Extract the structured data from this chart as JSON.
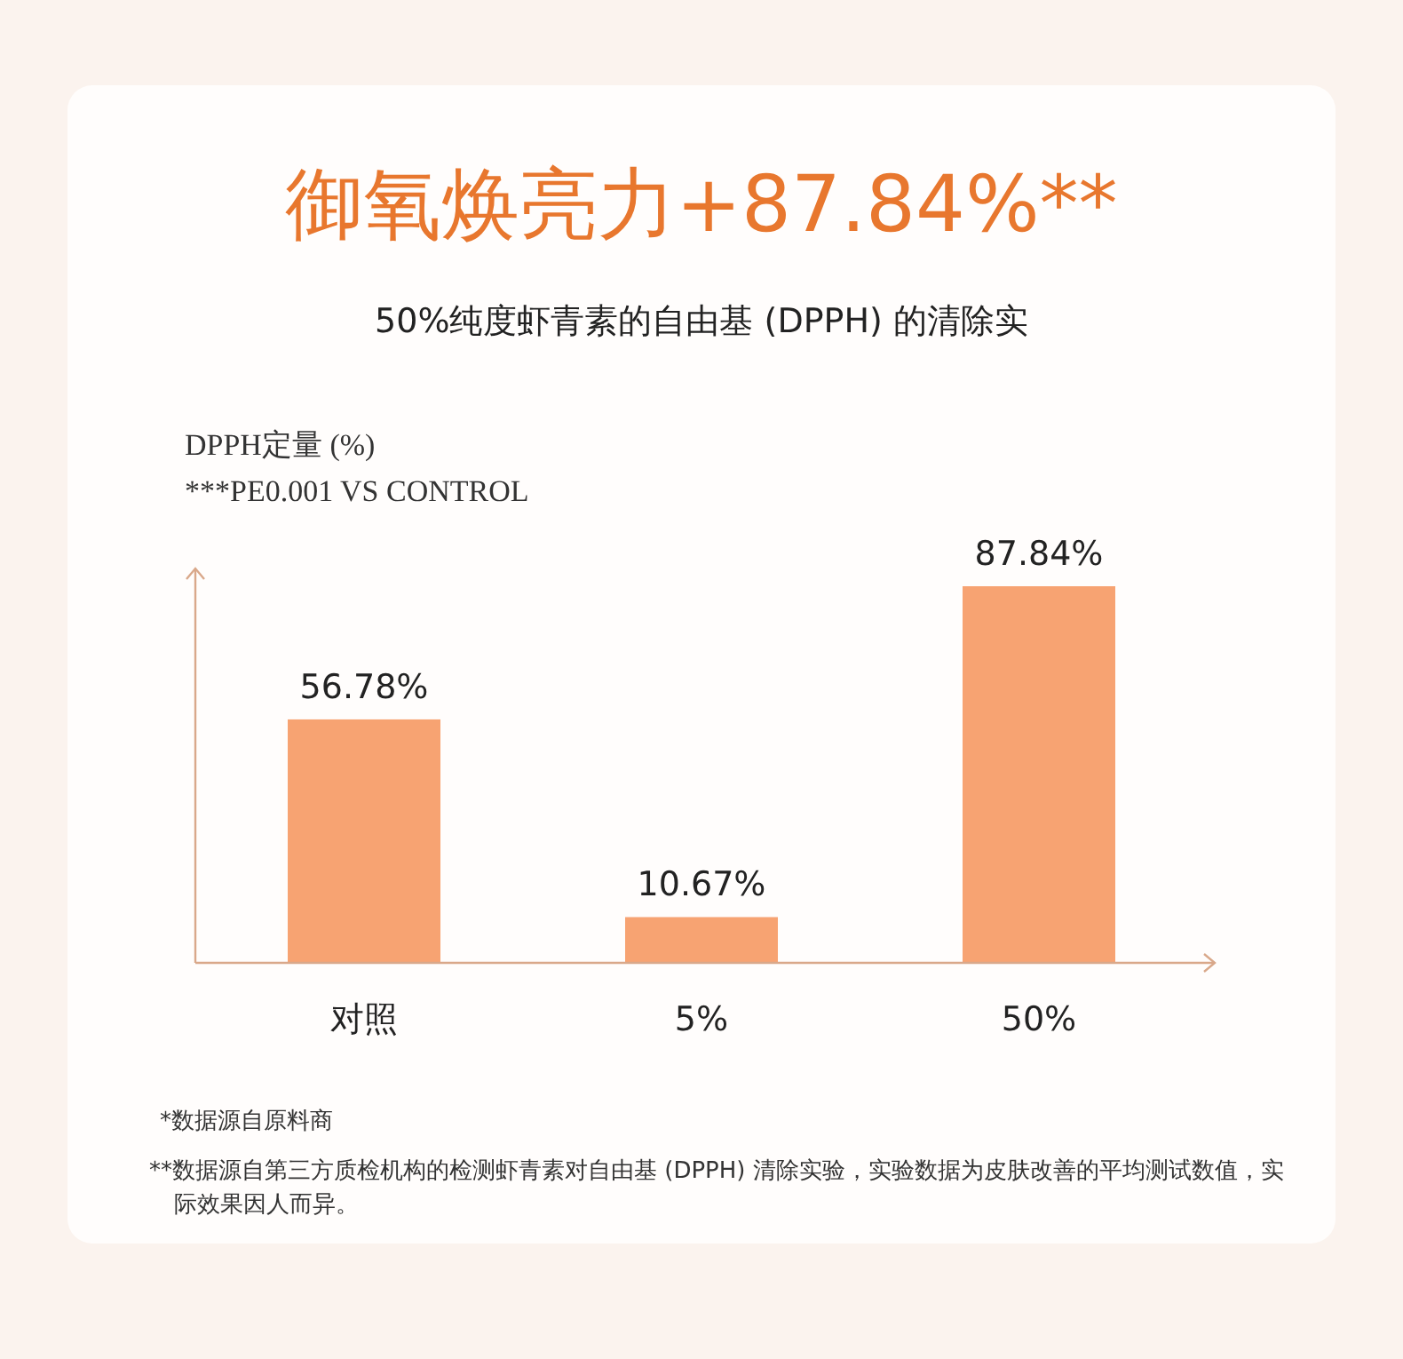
{
  "chart_data": {
    "type": "bar",
    "title": "御氧焕亮力+87.84%**",
    "subtitle": "50%纯度虾青素的自由基 (DPPH) 的清除实",
    "ylabel": "DPPH定量 (%)",
    "categories": [
      "对照",
      "5%",
      "50%"
    ],
    "values": [
      56.78,
      10.67,
      87.84
    ],
    "color": "#f7a372",
    "value_labels": [
      "56.78%",
      "10.67%",
      "87.84%"
    ],
    "annotations": [
      "***PE0.001 VS CONTROL",
      "*数据源自原料商",
      "**数据源自第三方质检机构的检测虾青素对自由基 (DPPH) 清除实验，实验数据为皮肤改善的平均测试数值，实际效果因人而异。"
    ]
  }
}
